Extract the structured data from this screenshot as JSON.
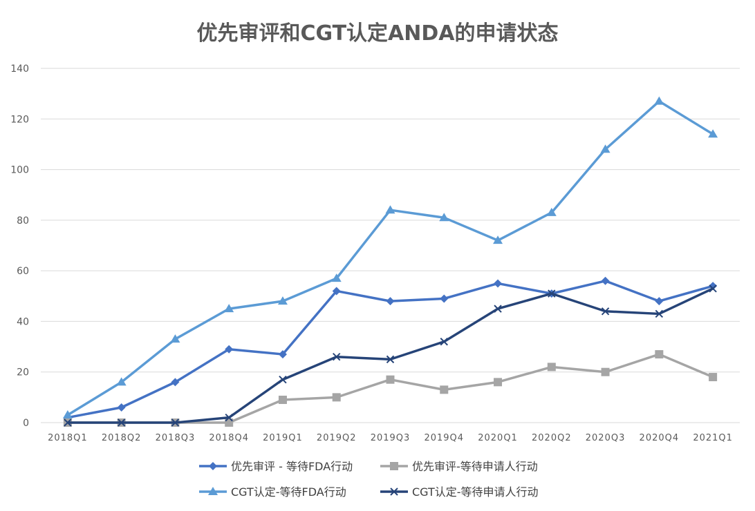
{
  "chart_data": {
    "type": "line",
    "title": "优先审评和CGT认定ANDA的申请状态",
    "xlabel": "",
    "ylabel": "",
    "ylim": [
      0,
      140
    ],
    "yticks": [
      0,
      20,
      40,
      60,
      80,
      100,
      120,
      140
    ],
    "grid": true,
    "legend_position": "bottom",
    "categories": [
      "2018Q1",
      "2018Q2",
      "2018Q3",
      "2018Q4",
      "2019Q1",
      "2019Q2",
      "2019Q3",
      "2019Q4",
      "2020Q1",
      "2020Q2",
      "2020Q3",
      "2020Q4",
      "2021Q1"
    ],
    "series": [
      {
        "name": "优先审评 - 等待FDA行动",
        "color": "#4472c4",
        "marker": "diamond",
        "values": [
          2,
          6,
          16,
          29,
          27,
          52,
          48,
          49,
          55,
          51,
          56,
          48,
          54
        ]
      },
      {
        "name": "优先审评-等待申请人行动",
        "color": "#a5a5a5",
        "marker": "square",
        "values": [
          0,
          0,
          0,
          0,
          9,
          10,
          17,
          13,
          16,
          22,
          20,
          27,
          18
        ]
      },
      {
        "name": "CGT认定-等待FDA行动",
        "color": "#5b9bd5",
        "marker": "triangle",
        "values": [
          3,
          16,
          33,
          45,
          48,
          57,
          84,
          81,
          72,
          83,
          108,
          127,
          114
        ]
      },
      {
        "name": "CGT认定-等待申请人行动",
        "color": "#264478",
        "marker": "x",
        "values": [
          0,
          0,
          0,
          2,
          17,
          26,
          25,
          32,
          45,
          51,
          44,
          43,
          53
        ]
      }
    ]
  }
}
